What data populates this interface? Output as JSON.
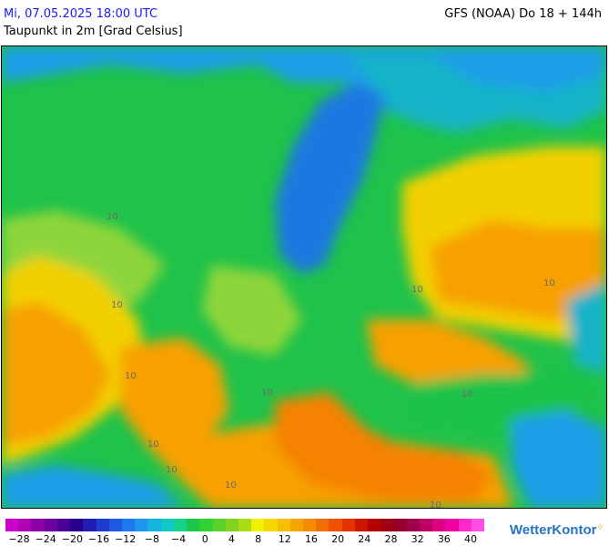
{
  "header": {
    "datetime": "Mi, 07.05.2025 18:00 UTC",
    "parameter": "Taupunkt in 2m [Grad Celsius]",
    "model_run": "GFS (NOAA) Do 18 + 144h"
  },
  "map": {
    "isoline_label": "10",
    "colors": {
      "sea_blue": "#1a9ee8",
      "cold_blue": "#1e78e0",
      "teal": "#12b3c8",
      "green": "#1fc24a",
      "light_green": "#8ed53a",
      "yellow": "#f2d000",
      "orange": "#f7a000",
      "dark_orange": "#f58200"
    }
  },
  "legend": {
    "colors": [
      "#cc00cc",
      "#b000b4",
      "#8c00a8",
      "#6e00a0",
      "#4b0096",
      "#28008c",
      "#1e1eb4",
      "#1e3ccd",
      "#1e5ae1",
      "#1e78f0",
      "#1e96f0",
      "#14b4dc",
      "#0fc8c8",
      "#14d28c",
      "#19c84b",
      "#32d232",
      "#5ad228",
      "#82d21e",
      "#aadc14",
      "#f0f000",
      "#f5d700",
      "#f5be00",
      "#f5a500",
      "#f58c00",
      "#f06e00",
      "#f05000",
      "#e13200",
      "#cd1400",
      "#b40000",
      "#a00014",
      "#96002d",
      "#a0004b",
      "#be0064",
      "#dc0082",
      "#f000a0",
      "#ff28c8",
      "#ff50e6"
    ],
    "ticks": [
      "−28",
      "−24",
      "−20",
      "−16",
      "−12",
      "−8",
      "−4",
      "0",
      "4",
      "8",
      "12",
      "16",
      "20",
      "24",
      "28",
      "32",
      "36",
      "40"
    ]
  },
  "brand": {
    "name": "WetterKontor"
  }
}
